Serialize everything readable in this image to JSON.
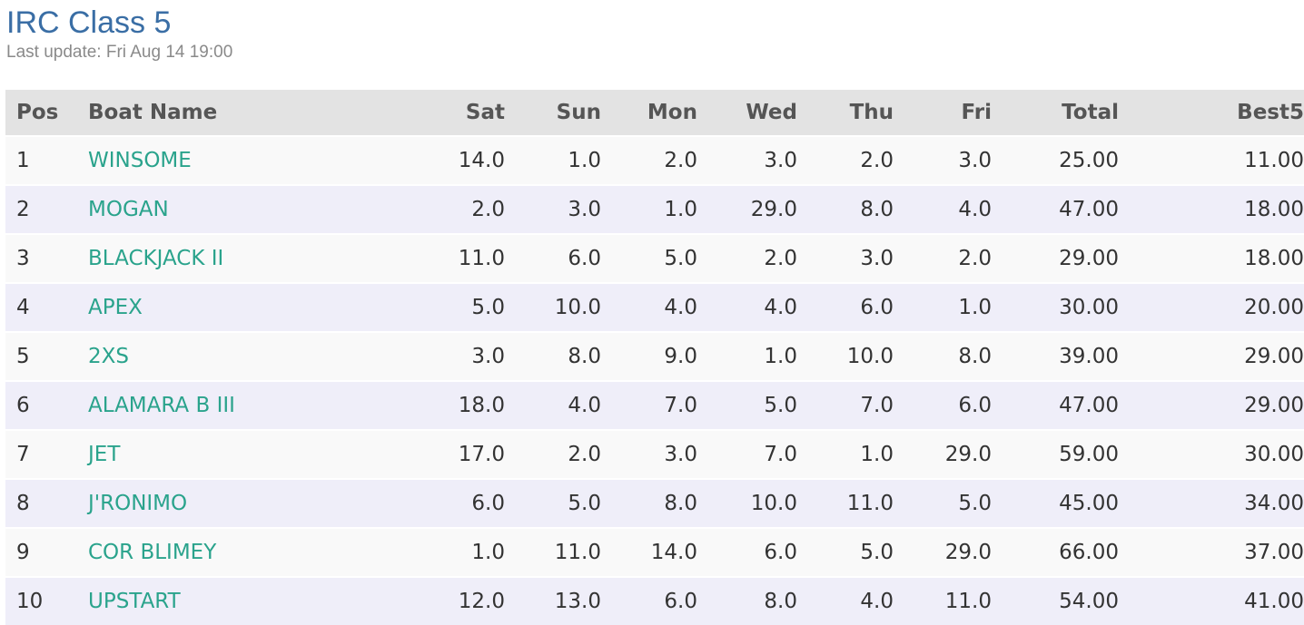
{
  "header": {
    "title": "IRC Class 5",
    "last_update": "Last update: Fri Aug 14 19:00"
  },
  "table": {
    "columns": [
      "Pos",
      "Boat Name",
      "Sat",
      "Sun",
      "Mon",
      "Wed",
      "Thu",
      "Fri",
      "Total",
      "Best5"
    ],
    "rows": [
      {
        "pos": "1",
        "boat": "WINSOME",
        "sat": "14.0",
        "sun": "1.0",
        "mon": "2.0",
        "wed": "3.0",
        "thu": "2.0",
        "fri": "3.0",
        "total": "25.00",
        "best5": "11.00"
      },
      {
        "pos": "2",
        "boat": "MOGAN",
        "sat": "2.0",
        "sun": "3.0",
        "mon": "1.0",
        "wed": "29.0",
        "thu": "8.0",
        "fri": "4.0",
        "total": "47.00",
        "best5": "18.00"
      },
      {
        "pos": "3",
        "boat": "BLACKJACK II",
        "sat": "11.0",
        "sun": "6.0",
        "mon": "5.0",
        "wed": "2.0",
        "thu": "3.0",
        "fri": "2.0",
        "total": "29.00",
        "best5": "18.00"
      },
      {
        "pos": "4",
        "boat": "APEX",
        "sat": "5.0",
        "sun": "10.0",
        "mon": "4.0",
        "wed": "4.0",
        "thu": "6.0",
        "fri": "1.0",
        "total": "30.00",
        "best5": "20.00"
      },
      {
        "pos": "5",
        "boat": "2XS",
        "sat": "3.0",
        "sun": "8.0",
        "mon": "9.0",
        "wed": "1.0",
        "thu": "10.0",
        "fri": "8.0",
        "total": "39.00",
        "best5": "29.00"
      },
      {
        "pos": "6",
        "boat": "ALAMARA B III",
        "sat": "18.0",
        "sun": "4.0",
        "mon": "7.0",
        "wed": "5.0",
        "thu": "7.0",
        "fri": "6.0",
        "total": "47.00",
        "best5": "29.00"
      },
      {
        "pos": "7",
        "boat": "JET",
        "sat": "17.0",
        "sun": "2.0",
        "mon": "3.0",
        "wed": "7.0",
        "thu": "1.0",
        "fri": "29.0",
        "total": "59.00",
        "best5": "30.00"
      },
      {
        "pos": "8",
        "boat": "J'RONIMO",
        "sat": "6.0",
        "sun": "5.0",
        "mon": "8.0",
        "wed": "10.0",
        "thu": "11.0",
        "fri": "5.0",
        "total": "45.00",
        "best5": "34.00"
      },
      {
        "pos": "9",
        "boat": "COR BLIMEY",
        "sat": "1.0",
        "sun": "11.0",
        "mon": "14.0",
        "wed": "6.0",
        "thu": "5.0",
        "fri": "29.0",
        "total": "66.00",
        "best5": "37.00"
      },
      {
        "pos": "10",
        "boat": "UPSTART",
        "sat": "12.0",
        "sun": "13.0",
        "mon": "6.0",
        "wed": "8.0",
        "thu": "4.0",
        "fri": "11.0",
        "total": "54.00",
        "best5": "41.00"
      }
    ]
  },
  "colors": {
    "title": "#3a6ea5",
    "boat_link": "#2aa38c",
    "header_bg": "#e3e3e3",
    "row_odd": "#f9f9f9",
    "row_even": "#efeef9"
  }
}
